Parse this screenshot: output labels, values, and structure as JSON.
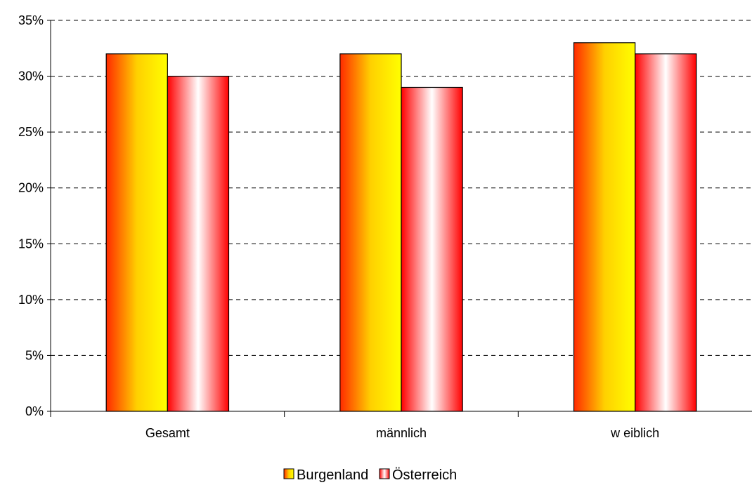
{
  "chart_data": {
    "type": "bar",
    "categories": [
      "Gesamt",
      "männlich",
      "w eiblich"
    ],
    "series": [
      {
        "name": "Burgenland",
        "values": [
          32,
          32,
          33
        ],
        "gradient": [
          "#ff2a00",
          "#ffd000",
          "#ffff00"
        ]
      },
      {
        "name": "Österreich",
        "values": [
          30,
          29,
          32
        ],
        "gradient": [
          "#ff0000",
          "#ffffff",
          "#ff0000"
        ]
      }
    ],
    "ylim": [
      0,
      35
    ],
    "yticks": [
      0,
      5,
      10,
      15,
      20,
      25,
      30,
      35
    ],
    "ytick_labels": [
      "0%",
      "5%",
      "10%",
      "15%",
      "20%",
      "25%",
      "30%",
      "35%"
    ],
    "grid": true,
    "grid_style": "dashed",
    "legend_position": "bottom"
  }
}
